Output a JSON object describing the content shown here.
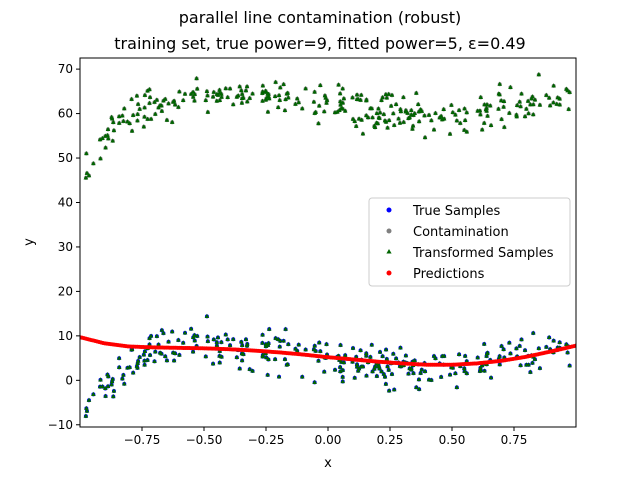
{
  "chart_data": {
    "type": "scatter",
    "title": "parallel line contamination (robust)",
    "subtitle": "training set, true power=9, fitted power=5, ε=0.49",
    "xlabel": "x",
    "ylabel": "y",
    "xlim": [
      -1.0,
      1.0
    ],
    "ylim": [
      -10.5,
      72.5
    ],
    "xticks": [
      -0.75,
      -0.5,
      -0.25,
      0.0,
      0.25,
      0.5,
      0.75
    ],
    "xtick_labels": [
      "−0.75",
      "−0.50",
      "−0.25",
      "0.00",
      "0.25",
      "0.50",
      "0.75"
    ],
    "yticks": [
      -10,
      0,
      10,
      20,
      30,
      40,
      50,
      60,
      70
    ],
    "ytick_labels": [
      "−10",
      "0",
      "10",
      "20",
      "30",
      "40",
      "50",
      "60",
      "70"
    ],
    "legend_position": "center-right",
    "series": [
      {
        "name": "True Samples",
        "color": "#0000ff",
        "marker": "circle",
        "description": "lower cluster, hidden beneath transformed samples",
        "x": [
          -0.98,
          -0.9,
          -0.8,
          -0.7,
          -0.6,
          -0.5,
          -0.4,
          -0.3,
          -0.2,
          -0.1,
          0.0,
          0.1,
          0.2,
          0.3,
          0.4,
          0.5,
          0.6,
          0.7,
          0.8,
          0.9,
          0.98
        ],
        "y": [
          -6.0,
          -1.5,
          3.5,
          6.5,
          7.5,
          7.8,
          7.6,
          7.0,
          6.4,
          5.6,
          4.8,
          4.0,
          3.3,
          2.8,
          2.5,
          2.7,
          3.3,
          4.5,
          5.8,
          6.8,
          6.5
        ]
      },
      {
        "name": "Contamination",
        "color": "#808080",
        "marker": "circle",
        "description": "upper cluster, hidden beneath transformed samples",
        "x": [
          -0.98,
          -0.9,
          -0.8,
          -0.7,
          -0.6,
          -0.5,
          -0.4,
          -0.3,
          -0.2,
          -0.1,
          0.0,
          0.1,
          0.2,
          0.3,
          0.4,
          0.5,
          0.6,
          0.7,
          0.8,
          0.9,
          0.98
        ],
        "y": [
          45.0,
          55.0,
          59.5,
          62.0,
          63.5,
          64.5,
          65.0,
          64.8,
          64.0,
          63.0,
          62.0,
          61.0,
          60.2,
          59.8,
          59.5,
          59.5,
          60.0,
          61.0,
          62.0,
          62.8,
          62.5
        ]
      },
      {
        "name": "Transformed Samples",
        "color": "#006400",
        "marker": "triangle",
        "description": "noisy points scattered around both the lower and upper clusters",
        "x": [
          -0.98,
          -0.9,
          -0.8,
          -0.7,
          -0.6,
          -0.5,
          -0.4,
          -0.3,
          -0.2,
          -0.1,
          0.0,
          0.1,
          0.2,
          0.3,
          0.4,
          0.5,
          0.6,
          0.7,
          0.8,
          0.9,
          0.98
        ],
        "y_lower": [
          -6.0,
          -1.5,
          3.5,
          6.5,
          7.5,
          7.8,
          7.6,
          7.0,
          6.4,
          5.6,
          4.8,
          4.0,
          3.3,
          2.8,
          2.5,
          2.7,
          3.3,
          4.5,
          5.8,
          6.8,
          6.5
        ],
        "y_upper": [
          45.0,
          55.0,
          59.5,
          62.0,
          63.5,
          64.5,
          65.0,
          64.8,
          64.0,
          63.0,
          62.0,
          61.0,
          60.2,
          59.8,
          59.5,
          59.5,
          60.0,
          61.0,
          62.0,
          62.8,
          62.5
        ],
        "noise": 3
      },
      {
        "name": "Predictions",
        "color": "#ff0000",
        "marker": "circle",
        "x": [
          -1.0,
          -0.9,
          -0.8,
          -0.7,
          -0.6,
          -0.5,
          -0.4,
          -0.3,
          -0.2,
          -0.1,
          0.0,
          0.1,
          0.2,
          0.3,
          0.4,
          0.5,
          0.6,
          0.7,
          0.8,
          0.9,
          1.0
        ],
        "y": [
          9.7,
          8.3,
          7.6,
          7.4,
          7.3,
          7.2,
          7.0,
          6.7,
          6.3,
          5.8,
          5.2,
          4.7,
          4.2,
          3.8,
          3.5,
          3.5,
          3.8,
          4.4,
          5.3,
          6.5,
          7.8
        ]
      }
    ]
  }
}
